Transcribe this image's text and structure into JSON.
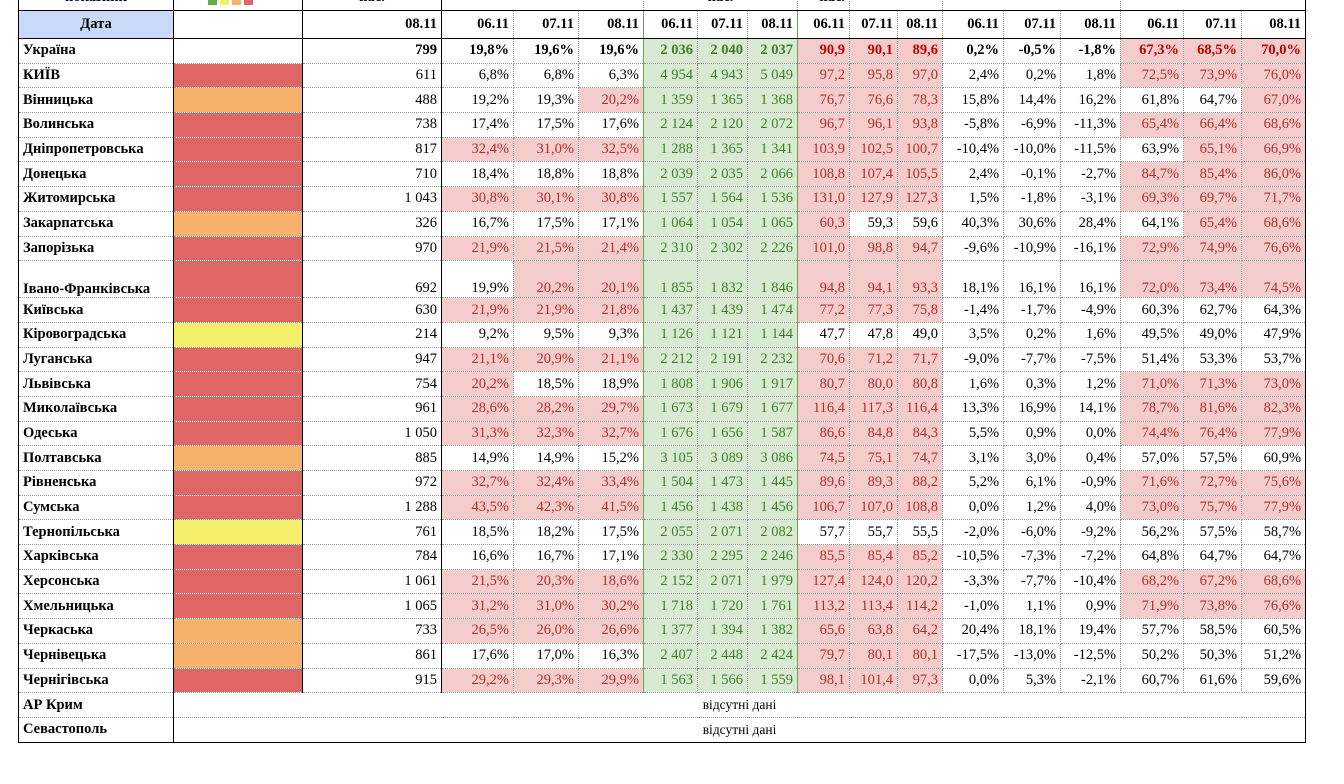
{
  "header": {
    "top": [
      "показник",
      "нас.",
      "нас.",
      "нас."
    ],
    "date_label": "Дата",
    "dates": [
      "08.11",
      "06.11",
      "07.11",
      "08.11",
      "06.11",
      "07.11",
      "08.11",
      "06.11",
      "07.11",
      "08.11",
      "06.11",
      "07.11",
      "08.11",
      "06.11",
      "07.11",
      "08.11"
    ]
  },
  "rows": [
    {
      "name": "Україна",
      "cells": [
        "799",
        "19,8%",
        "19,6%",
        "19,6%",
        "2 036",
        "2 040",
        "2 037",
        "90,9",
        "90,1",
        "89,6",
        "0,2%",
        "-0,5%",
        "-1,8%",
        "67,3%",
        "68,5%",
        "70,0%"
      ],
      "shaded": [
        false,
        false,
        false,
        true,
        true,
        true,
        true,
        true,
        true
      ]
    },
    {
      "name": "КИЇВ",
      "level": "#e06666",
      "cells": [
        "611",
        "6,8%",
        "6,8%",
        "6,3%",
        "4 954",
        "4 943",
        "5 049",
        "97,2",
        "95,8",
        "97,0",
        "2,4%",
        "0,2%",
        "1,8%",
        "72,5%",
        "73,9%",
        "76,0%"
      ],
      "shaded": [
        false,
        false,
        false,
        true,
        true,
        true,
        true,
        true,
        true
      ]
    },
    {
      "name": "Вінницька",
      "level": "#f6b26b",
      "cells": [
        "488",
        "19,2%",
        "19,3%",
        "20,2%",
        "1 359",
        "1 365",
        "1 368",
        "76,7",
        "76,6",
        "78,3",
        "15,8%",
        "14,4%",
        "16,2%",
        "61,8%",
        "64,7%",
        "67,0%"
      ],
      "shaded": [
        false,
        false,
        true,
        true,
        true,
        true,
        false,
        false,
        true
      ]
    },
    {
      "name": "Волинська",
      "level": "#e06666",
      "cells": [
        "738",
        "17,4%",
        "17,5%",
        "17,6%",
        "2 124",
        "2 120",
        "2 072",
        "96,7",
        "96,1",
        "93,8",
        "-5,8%",
        "-6,9%",
        "-11,3%",
        "65,4%",
        "66,4%",
        "68,6%"
      ],
      "shaded": [
        false,
        false,
        false,
        true,
        true,
        true,
        true,
        true,
        true
      ]
    },
    {
      "name": "Дніпропетровська",
      "level": "#e06666",
      "cells": [
        "817",
        "32,4%",
        "31,0%",
        "32,5%",
        "1 288",
        "1 365",
        "1 341",
        "103,9",
        "102,5",
        "100,7",
        "-10,4%",
        "-10,0%",
        "-11,5%",
        "63,9%",
        "65,1%",
        "66,9%"
      ],
      "shaded": [
        true,
        true,
        true,
        true,
        true,
        true,
        false,
        true,
        true
      ]
    },
    {
      "name": "Донецька",
      "level": "#e06666",
      "cells": [
        "710",
        "18,4%",
        "18,8%",
        "18,8%",
        "2 039",
        "2 035",
        "2 066",
        "108,8",
        "107,4",
        "105,5",
        "2,4%",
        "-0,1%",
        "-2,7%",
        "84,7%",
        "85,4%",
        "86,0%"
      ],
      "shaded": [
        false,
        false,
        false,
        true,
        true,
        true,
        true,
        true,
        true
      ]
    },
    {
      "name": "Житомирська",
      "level": "#e06666",
      "cells": [
        "1 043",
        "30,8%",
        "30,1%",
        "30,8%",
        "1 557",
        "1 564",
        "1 536",
        "131,0",
        "127,9",
        "127,3",
        "1,5%",
        "-1,8%",
        "-3,1%",
        "69,3%",
        "69,7%",
        "71,7%"
      ],
      "shaded": [
        true,
        true,
        true,
        true,
        true,
        true,
        true,
        true,
        true
      ]
    },
    {
      "name": "Закарпатська",
      "level": "#f6b26b",
      "cells": [
        "326",
        "16,7%",
        "17,5%",
        "17,1%",
        "1 064",
        "1 054",
        "1 065",
        "60,3",
        "59,3",
        "59,6",
        "40,3%",
        "30,6%",
        "28,4%",
        "64,1%",
        "65,4%",
        "68,6%"
      ],
      "shaded": [
        false,
        false,
        false,
        true,
        false,
        false,
        false,
        true,
        true
      ]
    },
    {
      "name": "Запорізька",
      "level": "#e06666",
      "cells": [
        "970",
        "21,9%",
        "21,5%",
        "21,4%",
        "2 310",
        "2 302",
        "2 226",
        "101,0",
        "98,8",
        "94,7",
        "-9,6%",
        "-10,9%",
        "-16,1%",
        "72,9%",
        "74,9%",
        "76,6%"
      ],
      "shaded": [
        true,
        true,
        true,
        true,
        true,
        true,
        true,
        true,
        true
      ]
    },
    {
      "name": "Івано-Франківська",
      "level": "#e06666",
      "cells": [
        "692",
        "19,9%",
        "20,2%",
        "20,1%",
        "1 855",
        "1 832",
        "1 846",
        "94,8",
        "94,1",
        "93,3",
        "18,1%",
        "16,1%",
        "16,1%",
        "72,0%",
        "73,4%",
        "74,5%"
      ],
      "shaded": [
        false,
        true,
        true,
        true,
        true,
        true,
        true,
        true,
        true
      ]
    },
    {
      "name": "Київська",
      "level": "#e06666",
      "cells": [
        "630",
        "21,9%",
        "21,9%",
        "21,8%",
        "1 437",
        "1 439",
        "1 474",
        "77,2",
        "77,3",
        "75,8",
        "-1,4%",
        "-1,7%",
        "-4,9%",
        "60,3%",
        "62,7%",
        "64,3%"
      ],
      "shaded": [
        true,
        true,
        true,
        true,
        true,
        true,
        false,
        false,
        false
      ]
    },
    {
      "name": "Кіровоградська",
      "level": "#f3ef6b",
      "cells": [
        "214",
        "9,2%",
        "9,5%",
        "9,3%",
        "1 126",
        "1 121",
        "1 144",
        "47,7",
        "47,8",
        "49,0",
        "3,5%",
        "0,2%",
        "1,6%",
        "49,5%",
        "49,0%",
        "47,9%"
      ],
      "shaded": [
        false,
        false,
        false,
        false,
        false,
        false,
        false,
        false,
        false
      ]
    },
    {
      "name": "Луганська",
      "level": "#e06666",
      "cells": [
        "947",
        "21,1%",
        "20,9%",
        "21,1%",
        "2 212",
        "2 191",
        "2 232",
        "70,6",
        "71,2",
        "71,7",
        "-9,0%",
        "-7,7%",
        "-7,5%",
        "51,4%",
        "53,3%",
        "53,7%"
      ],
      "shaded": [
        true,
        true,
        true,
        true,
        true,
        true,
        false,
        false,
        false
      ]
    },
    {
      "name": "Львівська",
      "level": "#e06666",
      "cells": [
        "754",
        "20,2%",
        "18,5%",
        "18,9%",
        "1 808",
        "1 906",
        "1 917",
        "80,7",
        "80,0",
        "80,8",
        "1,6%",
        "0,3%",
        "1,2%",
        "71,0%",
        "71,3%",
        "73,0%"
      ],
      "shaded": [
        true,
        false,
        false,
        true,
        true,
        true,
        true,
        true,
        true
      ]
    },
    {
      "name": "Миколаївська",
      "level": "#e06666",
      "cells": [
        "961",
        "28,6%",
        "28,2%",
        "29,7%",
        "1 673",
        "1 679",
        "1 677",
        "116,4",
        "117,3",
        "116,4",
        "13,3%",
        "16,9%",
        "14,1%",
        "78,7%",
        "81,6%",
        "82,3%"
      ],
      "shaded": [
        true,
        true,
        true,
        true,
        true,
        true,
        true,
        true,
        true
      ]
    },
    {
      "name": "Одеська",
      "level": "#e06666",
      "cells": [
        "1 050",
        "31,3%",
        "32,3%",
        "32,7%",
        "1 676",
        "1 656",
        "1 587",
        "86,6",
        "84,8",
        "84,3",
        "5,5%",
        "0,9%",
        "0,0%",
        "74,4%",
        "76,4%",
        "77,9%"
      ],
      "shaded": [
        true,
        true,
        true,
        true,
        true,
        true,
        true,
        true,
        true
      ]
    },
    {
      "name": "Полтавська",
      "level": "#f6b26b",
      "cells": [
        "885",
        "14,9%",
        "14,9%",
        "15,2%",
        "3 105",
        "3 089",
        "3 086",
        "74,5",
        "75,1",
        "74,7",
        "3,1%",
        "3,0%",
        "0,4%",
        "57,0%",
        "57,5%",
        "60,9%"
      ],
      "shaded": [
        false,
        false,
        false,
        true,
        true,
        true,
        false,
        false,
        false
      ]
    },
    {
      "name": "Рівненська",
      "level": "#e06666",
      "cells": [
        "972",
        "32,7%",
        "32,4%",
        "33,4%",
        "1 504",
        "1 473",
        "1 445",
        "89,6",
        "89,3",
        "88,2",
        "5,2%",
        "6,1%",
        "-0,9%",
        "71,6%",
        "72,7%",
        "75,6%"
      ],
      "shaded": [
        true,
        true,
        true,
        true,
        true,
        true,
        true,
        true,
        true
      ]
    },
    {
      "name": "Сумська",
      "level": "#e06666",
      "cells": [
        "1 288",
        "43,5%",
        "42,3%",
        "41,5%",
        "1 456",
        "1 438",
        "1 456",
        "106,7",
        "107,0",
        "108,8",
        "0,0%",
        "1,2%",
        "4,0%",
        "73,0%",
        "75,7%",
        "77,9%"
      ],
      "shaded": [
        true,
        true,
        true,
        true,
        true,
        true,
        true,
        true,
        true
      ]
    },
    {
      "name": "Тернопільська",
      "level": "#f3ef6b",
      "cells": [
        "761",
        "18,5%",
        "18,2%",
        "17,5%",
        "2 055",
        "2 071",
        "2 082",
        "57,7",
        "55,7",
        "55,5",
        "-2,0%",
        "-6,0%",
        "-9,2%",
        "56,2%",
        "57,5%",
        "58,7%"
      ],
      "shaded": [
        false,
        false,
        false,
        false,
        false,
        false,
        false,
        false,
        false
      ]
    },
    {
      "name": "Харківська",
      "level": "#e06666",
      "cells": [
        "784",
        "16,6%",
        "16,7%",
        "17,1%",
        "2 330",
        "2 295",
        "2 246",
        "85,5",
        "85,4",
        "85,2",
        "-10,5%",
        "-7,3%",
        "-7,2%",
        "64,8%",
        "64,7%",
        "64,7%"
      ],
      "shaded": [
        false,
        false,
        false,
        true,
        true,
        true,
        false,
        false,
        false
      ]
    },
    {
      "name": "Херсонська",
      "level": "#e06666",
      "cells": [
        "1 061",
        "21,5%",
        "20,3%",
        "18,6%",
        "2 152",
        "2 071",
        "1 979",
        "127,4",
        "124,0",
        "120,2",
        "-3,3%",
        "-7,7%",
        "-10,4%",
        "68,2%",
        "67,2%",
        "68,6%"
      ],
      "shaded": [
        true,
        true,
        true,
        true,
        true,
        true,
        true,
        true,
        true
      ]
    },
    {
      "name": "Хмельницька",
      "level": "#e06666",
      "cells": [
        "1 065",
        "31,2%",
        "31,0%",
        "30,2%",
        "1 718",
        "1 720",
        "1 761",
        "113,2",
        "113,4",
        "114,2",
        "-1,0%",
        "1,1%",
        "0,9%",
        "71,9%",
        "73,8%",
        "76,6%"
      ],
      "shaded": [
        true,
        true,
        true,
        true,
        true,
        true,
        true,
        true,
        true
      ]
    },
    {
      "name": "Черкаська",
      "level": "#f6b26b",
      "cells": [
        "733",
        "26,5%",
        "26,0%",
        "26,6%",
        "1 377",
        "1 394",
        "1 382",
        "65,6",
        "63,8",
        "64,2",
        "20,4%",
        "18,1%",
        "19,4%",
        "57,7%",
        "58,5%",
        "60,5%"
      ],
      "shaded": [
        true,
        true,
        true,
        true,
        true,
        true,
        false,
        false,
        false
      ]
    },
    {
      "name": "Чернівецька",
      "level": "#f6b26b",
      "cells": [
        "861",
        "17,6%",
        "17,0%",
        "16,3%",
        "2 407",
        "2 448",
        "2 424",
        "79,7",
        "80,1",
        "80,1",
        "-17,5%",
        "-13,0%",
        "-12,5%",
        "50,2%",
        "50,3%",
        "51,2%"
      ],
      "shaded": [
        false,
        false,
        false,
        true,
        true,
        true,
        false,
        false,
        false
      ]
    },
    {
      "name": "Чернігівська",
      "level": "#e06666",
      "cells": [
        "915",
        "29,2%",
        "29,3%",
        "29,9%",
        "1 563",
        "1 566",
        "1 559",
        "98,1",
        "101,4",
        "97,3",
        "0,0%",
        "5,3%",
        "-2,1%",
        "60,7%",
        "61,6%",
        "59,6%"
      ],
      "shaded": [
        true,
        true,
        true,
        true,
        true,
        true,
        false,
        false,
        false
      ]
    }
  ],
  "missing": [
    {
      "name": "АР Крим",
      "note": "відсутні дані"
    },
    {
      "name": "Севастополь",
      "note": "відсутні дані"
    }
  ]
}
